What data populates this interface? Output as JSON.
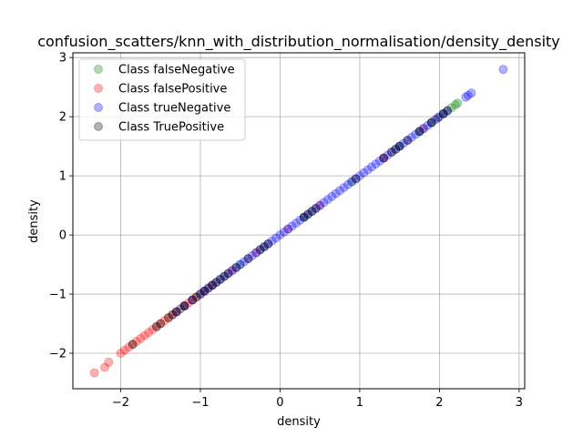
{
  "chart_data": {
    "type": "scatter",
    "title": "confusion_scatters/knn_with_distribution_normalisation/density_density",
    "xlabel": "density",
    "ylabel": "density",
    "xlim": [
      -2.6,
      3.07
    ],
    "ylim": [
      -2.6,
      3.08
    ],
    "xticks": [
      -2,
      -1,
      0,
      1,
      2,
      3
    ],
    "yticks": [
      -2,
      -1,
      0,
      1,
      2,
      3
    ],
    "xtick_labels": [
      "−2",
      "−1",
      "0",
      "1",
      "2",
      "3"
    ],
    "ytick_labels": [
      "−2",
      "−1",
      "0",
      "1",
      "2",
      "3"
    ],
    "grid": true,
    "legend_position": "top-left",
    "marker_alpha": 0.3,
    "series": [
      {
        "name": "Class falseNegative",
        "color": "#008000",
        "x": [
          2.15,
          2.2,
          2.23,
          1.9,
          1.5,
          0.9,
          0.3,
          -0.5,
          -1.2,
          1.75,
          2.05
        ],
        "y": [
          2.15,
          2.2,
          2.23,
          1.9,
          1.5,
          0.9,
          0.3,
          -0.5,
          -1.2,
          1.75,
          2.05
        ]
      },
      {
        "name": "Class falsePositive",
        "color": "#ff0000",
        "x": [
          -2.33,
          -2.2,
          -2.15,
          -2.0,
          -1.95,
          -1.9,
          -1.85,
          -1.8,
          -1.75,
          -1.7,
          -1.65,
          -1.6,
          -1.55,
          -1.5,
          -1.45,
          -1.4,
          -1.35,
          -1.3,
          -1.2,
          -1.15,
          -1.1,
          -1.05,
          -0.95,
          -0.85,
          -0.6,
          -0.3,
          0.1,
          0.5,
          1.3,
          1.8
        ],
        "y": [
          -2.33,
          -2.24,
          -2.15,
          -2.0,
          -1.95,
          -1.9,
          -1.85,
          -1.8,
          -1.75,
          -1.7,
          -1.65,
          -1.6,
          -1.55,
          -1.5,
          -1.45,
          -1.4,
          -1.35,
          -1.3,
          -1.2,
          -1.15,
          -1.1,
          -1.05,
          -0.95,
          -0.85,
          -0.6,
          -0.3,
          0.1,
          0.5,
          1.3,
          1.8
        ]
      },
      {
        "name": "Class trueNegative",
        "color": "#0000ff",
        "x": [
          2.8,
          2.4,
          2.36,
          2.33,
          2.1,
          2.05,
          2.0,
          1.95,
          1.9,
          1.85,
          1.8,
          1.75,
          1.7,
          1.65,
          1.6,
          1.55,
          1.5,
          1.45,
          1.4,
          1.35,
          1.3,
          1.25,
          1.2,
          1.15,
          1.1,
          1.05,
          1.0,
          0.95,
          0.9,
          0.85,
          0.8,
          0.75,
          0.7,
          0.65,
          0.6,
          0.55,
          0.5,
          0.45,
          0.4,
          0.35,
          0.3,
          0.25,
          0.2,
          0.15,
          0.1,
          0.05,
          0.0,
          -0.05,
          -0.1,
          -0.15,
          -0.2,
          -0.25,
          -0.3,
          -0.35,
          -0.4,
          -0.45,
          -0.5,
          -0.55,
          -0.6,
          -0.65,
          -0.7,
          -0.75,
          -0.8,
          -0.85,
          -0.9,
          -0.95,
          -1.0,
          -1.1,
          -1.2,
          -1.3
        ],
        "y": [
          2.8,
          2.4,
          2.36,
          2.33,
          2.1,
          2.05,
          2.0,
          1.95,
          1.9,
          1.85,
          1.8,
          1.75,
          1.7,
          1.65,
          1.6,
          1.55,
          1.5,
          1.45,
          1.4,
          1.35,
          1.3,
          1.25,
          1.2,
          1.15,
          1.1,
          1.05,
          1.0,
          0.95,
          0.9,
          0.85,
          0.8,
          0.75,
          0.7,
          0.65,
          0.6,
          0.55,
          0.5,
          0.45,
          0.4,
          0.35,
          0.3,
          0.25,
          0.2,
          0.15,
          0.1,
          0.05,
          0.0,
          -0.05,
          -0.1,
          -0.15,
          -0.2,
          -0.25,
          -0.3,
          -0.35,
          -0.4,
          -0.45,
          -0.5,
          -0.55,
          -0.6,
          -0.65,
          -0.7,
          -0.75,
          -0.8,
          -0.85,
          -0.9,
          -0.95,
          -1.0,
          -1.1,
          -1.2,
          -1.3
        ]
      },
      {
        "name": "Class TruePositive",
        "color": "#000000",
        "x": [
          2.1,
          2.05,
          1.98,
          1.9,
          1.75,
          1.6,
          1.5,
          1.45,
          1.4,
          1.3,
          0.95,
          0.45,
          0.4,
          0.35,
          0.3,
          -0.15,
          -0.2,
          -0.25,
          -0.4,
          -0.55,
          -0.65,
          -0.7,
          -0.75,
          -0.8,
          -0.85,
          -0.9,
          -0.95,
          -1.0,
          -1.05,
          -1.1,
          -1.2,
          -1.25,
          -1.3,
          -1.35,
          -1.4,
          -1.5,
          -1.55,
          -1.85
        ],
        "y": [
          2.1,
          2.05,
          1.98,
          1.9,
          1.75,
          1.6,
          1.5,
          1.45,
          1.4,
          1.3,
          0.95,
          0.45,
          0.4,
          0.35,
          0.3,
          -0.15,
          -0.2,
          -0.25,
          -0.4,
          -0.55,
          -0.65,
          -0.7,
          -0.75,
          -0.8,
          -0.85,
          -0.9,
          -0.95,
          -1.0,
          -1.05,
          -1.1,
          -1.2,
          -1.25,
          -1.3,
          -1.35,
          -1.4,
          -1.5,
          -1.55,
          -1.85
        ]
      }
    ]
  }
}
